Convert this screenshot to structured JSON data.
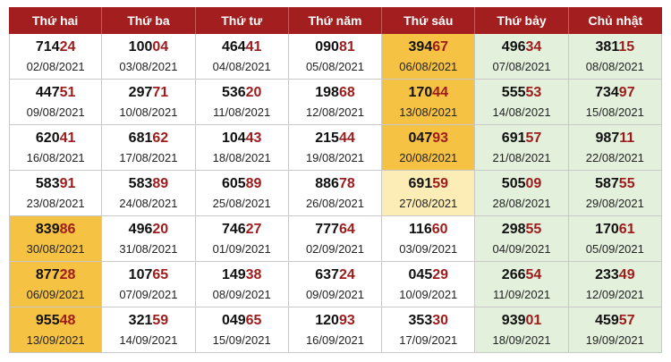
{
  "colors": {
    "header_bg": "#a31f1f",
    "weekend_bg": "#e3f0dc",
    "highlight": "#f6c244",
    "highlight_light": "#fbedb5",
    "tail_digits": "#9e1b1b"
  },
  "headers": [
    "Thứ hai",
    "Thứ ba",
    "Thứ tư",
    "Thứ năm",
    "Thứ sáu",
    "Thứ bảy",
    "Chủ nhật"
  ],
  "rows": [
    [
      {
        "head": "714",
        "tail": "24",
        "date": "02/08/2021"
      },
      {
        "head": "100",
        "tail": "04",
        "date": "03/08/2021"
      },
      {
        "head": "464",
        "tail": "41",
        "date": "04/08/2021"
      },
      {
        "head": "090",
        "tail": "81",
        "date": "05/08/2021"
      },
      {
        "head": "394",
        "tail": "67",
        "date": "06/08/2021",
        "highlight": "strong"
      },
      {
        "head": "496",
        "tail": "34",
        "date": "07/08/2021"
      },
      {
        "head": "381",
        "tail": "15",
        "date": "08/08/2021"
      }
    ],
    [
      {
        "head": "447",
        "tail": "51",
        "date": "09/08/2021"
      },
      {
        "head": "297",
        "tail": "71",
        "date": "10/08/2021"
      },
      {
        "head": "536",
        "tail": "20",
        "date": "11/08/2021"
      },
      {
        "head": "198",
        "tail": "68",
        "date": "12/08/2021"
      },
      {
        "head": "170",
        "tail": "44",
        "date": "13/08/2021",
        "highlight": "strong"
      },
      {
        "head": "555",
        "tail": "53",
        "date": "14/08/2021"
      },
      {
        "head": "734",
        "tail": "97",
        "date": "15/08/2021"
      }
    ],
    [
      {
        "head": "620",
        "tail": "41",
        "date": "16/08/2021"
      },
      {
        "head": "681",
        "tail": "62",
        "date": "17/08/2021"
      },
      {
        "head": "104",
        "tail": "43",
        "date": "18/08/2021"
      },
      {
        "head": "215",
        "tail": "44",
        "date": "19/08/2021"
      },
      {
        "head": "047",
        "tail": "93",
        "date": "20/08/2021",
        "highlight": "strong"
      },
      {
        "head": "691",
        "tail": "57",
        "date": "21/08/2021"
      },
      {
        "head": "987",
        "tail": "11",
        "date": "22/08/2021"
      }
    ],
    [
      {
        "head": "583",
        "tail": "91",
        "date": "23/08/2021"
      },
      {
        "head": "583",
        "tail": "89",
        "date": "24/08/2021"
      },
      {
        "head": "605",
        "tail": "89",
        "date": "25/08/2021"
      },
      {
        "head": "886",
        "tail": "78",
        "date": "26/08/2021"
      },
      {
        "head": "691",
        "tail": "59",
        "date": "27/08/2021",
        "highlight": "light"
      },
      {
        "head": "505",
        "tail": "09",
        "date": "28/08/2021"
      },
      {
        "head": "587",
        "tail": "55",
        "date": "29/08/2021"
      }
    ],
    [
      {
        "head": "839",
        "tail": "86",
        "date": "30/08/2021",
        "highlight": "strong"
      },
      {
        "head": "496",
        "tail": "20",
        "date": "31/08/2021"
      },
      {
        "head": "746",
        "tail": "27",
        "date": "01/09/2021"
      },
      {
        "head": "777",
        "tail": "64",
        "date": "02/09/2021"
      },
      {
        "head": "116",
        "tail": "60",
        "date": "03/09/2021"
      },
      {
        "head": "298",
        "tail": "55",
        "date": "04/09/2021"
      },
      {
        "head": "170",
        "tail": "61",
        "date": "05/09/2021"
      }
    ],
    [
      {
        "head": "877",
        "tail": "28",
        "date": "06/09/2021",
        "highlight": "strong"
      },
      {
        "head": "107",
        "tail": "65",
        "date": "07/09/2021"
      },
      {
        "head": "149",
        "tail": "38",
        "date": "08/09/2021"
      },
      {
        "head": "637",
        "tail": "24",
        "date": "09/09/2021"
      },
      {
        "head": "045",
        "tail": "29",
        "date": "10/09/2021"
      },
      {
        "head": "266",
        "tail": "54",
        "date": "11/09/2021"
      },
      {
        "head": "233",
        "tail": "49",
        "date": "12/09/2021"
      }
    ],
    [
      {
        "head": "955",
        "tail": "48",
        "date": "13/09/2021",
        "highlight": "strong"
      },
      {
        "head": "321",
        "tail": "59",
        "date": "14/09/2021"
      },
      {
        "head": "049",
        "tail": "65",
        "date": "15/09/2021"
      },
      {
        "head": "120",
        "tail": "93",
        "date": "16/09/2021"
      },
      {
        "head": "353",
        "tail": "30",
        "date": "17/09/2021"
      },
      {
        "head": "939",
        "tail": "01",
        "date": "18/09/2021"
      },
      {
        "head": "459",
        "tail": "57",
        "date": "19/09/2021"
      }
    ]
  ]
}
